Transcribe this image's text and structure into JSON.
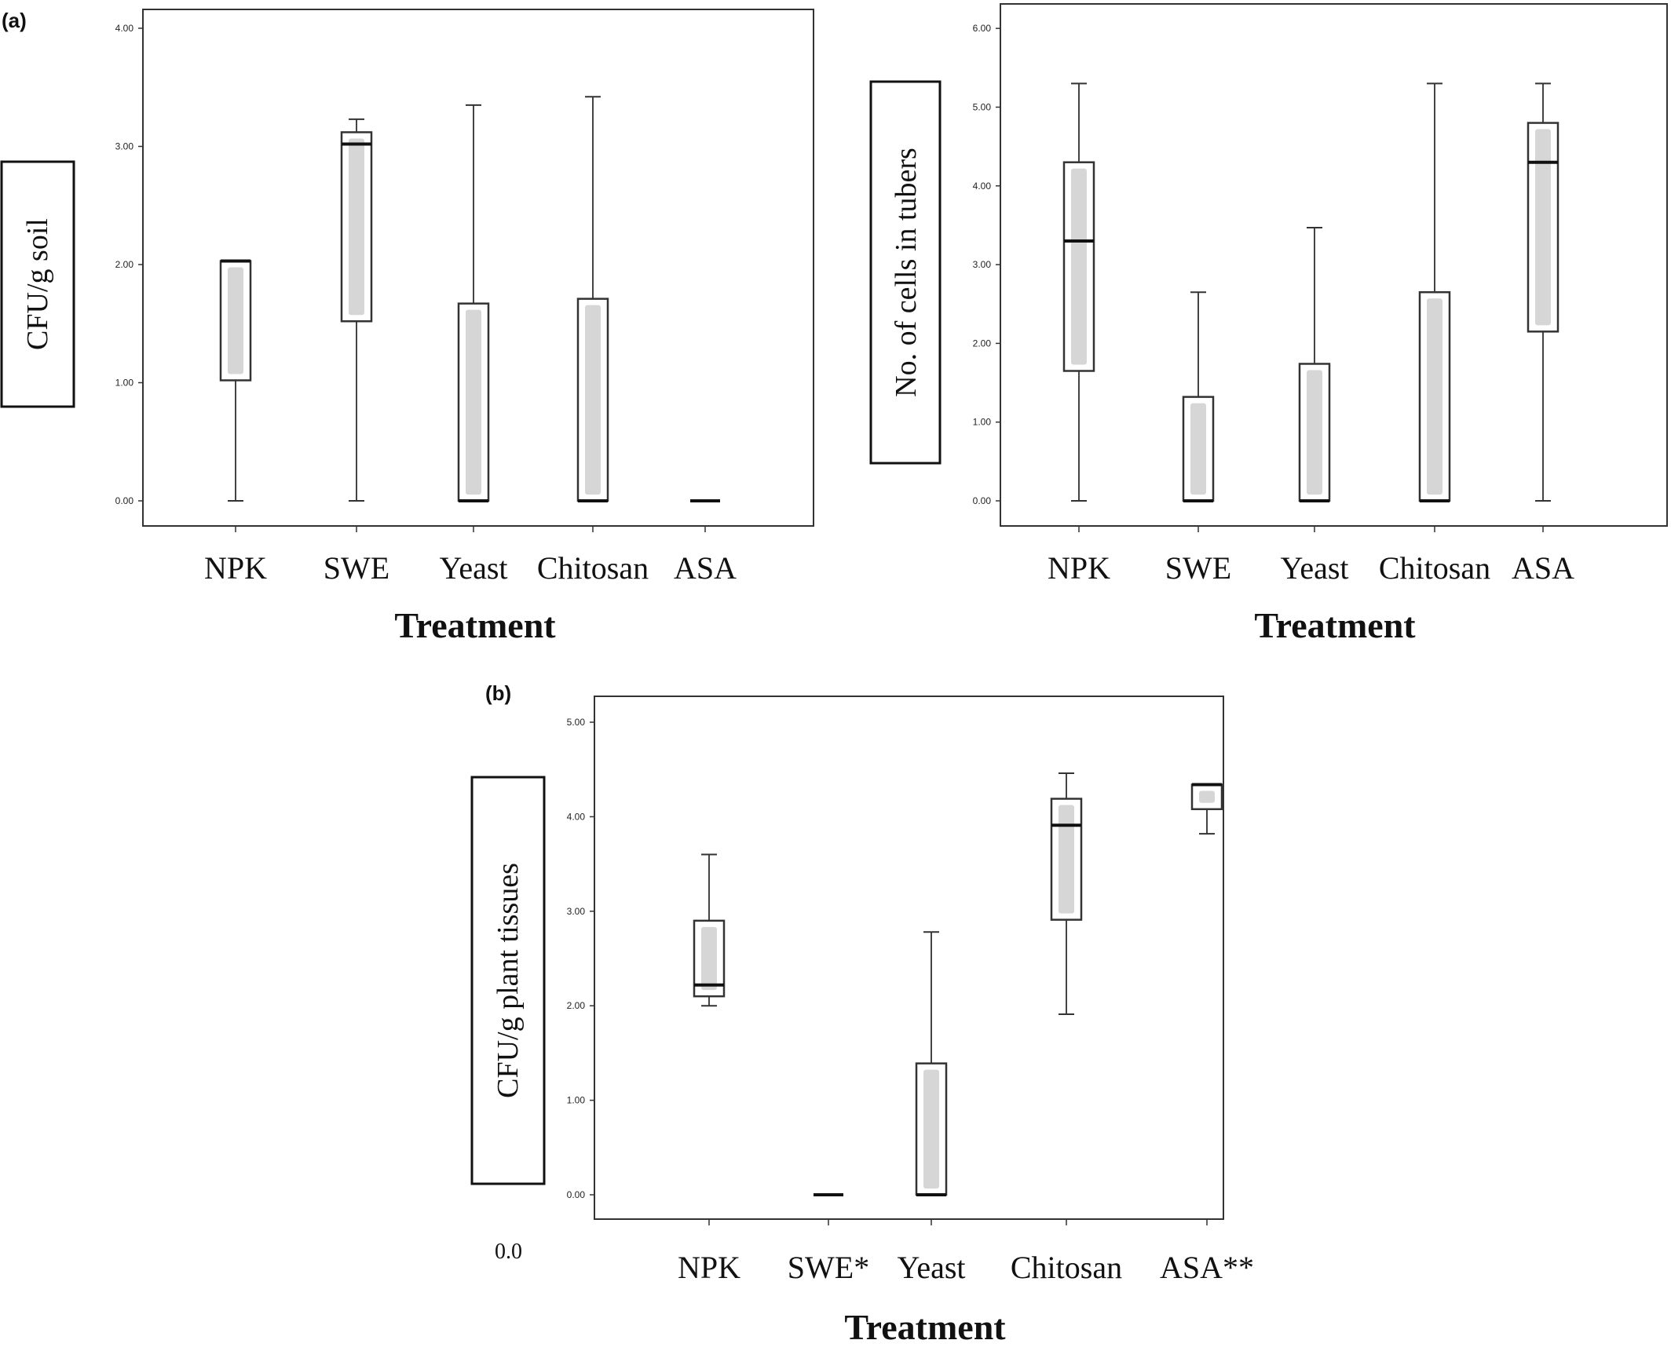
{
  "chart_data": [
    {
      "type": "box",
      "panel_label": "(a)",
      "ylabel": "CFU/g soil",
      "xlabel": "Treatment",
      "ylim": [
        0,
        4
      ],
      "yticks": [
        "0.00",
        "1.00",
        "2.00",
        "3.00",
        "4.00"
      ],
      "categories": [
        "NPK",
        "SWE",
        "Yeast",
        "Chitosan",
        "ASA"
      ],
      "boxes": [
        {
          "whisker_low": 0,
          "q1": 1.02,
          "median": 2.03,
          "q3": 2.03,
          "whisker_high": 2.03
        },
        {
          "whisker_low": 0,
          "q1": 1.52,
          "median": 3.02,
          "q3": 3.12,
          "whisker_high": 3.23
        },
        {
          "whisker_low": 0,
          "q1": 0,
          "median": 0,
          "q3": 1.67,
          "whisker_high": 3.35
        },
        {
          "whisker_low": 0,
          "q1": 0,
          "median": 0,
          "q3": 1.71,
          "whisker_high": 3.42
        },
        {
          "whisker_low": 0,
          "q1": 0,
          "median": 0,
          "q3": 0,
          "whisker_high": 0
        }
      ]
    },
    {
      "type": "box",
      "ylabel": "No. of cells in tubers",
      "xlabel": "Treatment",
      "ylim": [
        0,
        6
      ],
      "yticks": [
        "0.00",
        "1.00",
        "2.00",
        "3.00",
        "4.00",
        "5.00",
        "6.00"
      ],
      "categories": [
        "NPK",
        "SWE",
        "Yeast",
        "Chitosan",
        "ASA"
      ],
      "boxes": [
        {
          "whisker_low": 0,
          "q1": 1.65,
          "median": 3.3,
          "q3": 4.3,
          "whisker_high": 5.3
        },
        {
          "whisker_low": 0,
          "q1": 0,
          "median": 0,
          "q3": 1.32,
          "whisker_high": 2.65
        },
        {
          "whisker_low": 0,
          "q1": 0,
          "median": 0,
          "q3": 1.74,
          "whisker_high": 3.47
        },
        {
          "whisker_low": 0,
          "q1": 0,
          "median": 0,
          "q3": 2.65,
          "whisker_high": 5.3
        },
        {
          "whisker_low": 0,
          "q1": 2.15,
          "median": 4.3,
          "q3": 4.8,
          "whisker_high": 5.3
        }
      ]
    },
    {
      "type": "box",
      "panel_label": "(b)",
      "ylabel": "CFU/g plant tissues",
      "xlabel": "Treatment",
      "ylim": [
        0,
        5
      ],
      "yticks": [
        "0.00",
        "1.00",
        "2.00",
        "3.00",
        "4.00",
        "5.00"
      ],
      "extra_label": "0.0",
      "categories": [
        "NPK",
        "SWE*",
        "Yeast",
        "Chitosan",
        "ASA**"
      ],
      "boxes": [
        {
          "whisker_low": 2.0,
          "q1": 2.1,
          "median": 2.22,
          "q3": 2.9,
          "whisker_high": 3.6
        },
        {
          "whisker_low": 0,
          "q1": 0,
          "median": 0,
          "q3": 0,
          "whisker_high": 0
        },
        {
          "whisker_low": 0,
          "q1": 0,
          "median": 0,
          "q3": 1.39,
          "whisker_high": 2.78
        },
        {
          "whisker_low": 1.91,
          "q1": 2.91,
          "median": 3.91,
          "q3": 4.19,
          "whisker_high": 4.46
        },
        {
          "whisker_low": 3.82,
          "q1": 4.08,
          "median": 4.34,
          "q3": 4.34,
          "whisker_high": 4.34
        }
      ]
    }
  ]
}
